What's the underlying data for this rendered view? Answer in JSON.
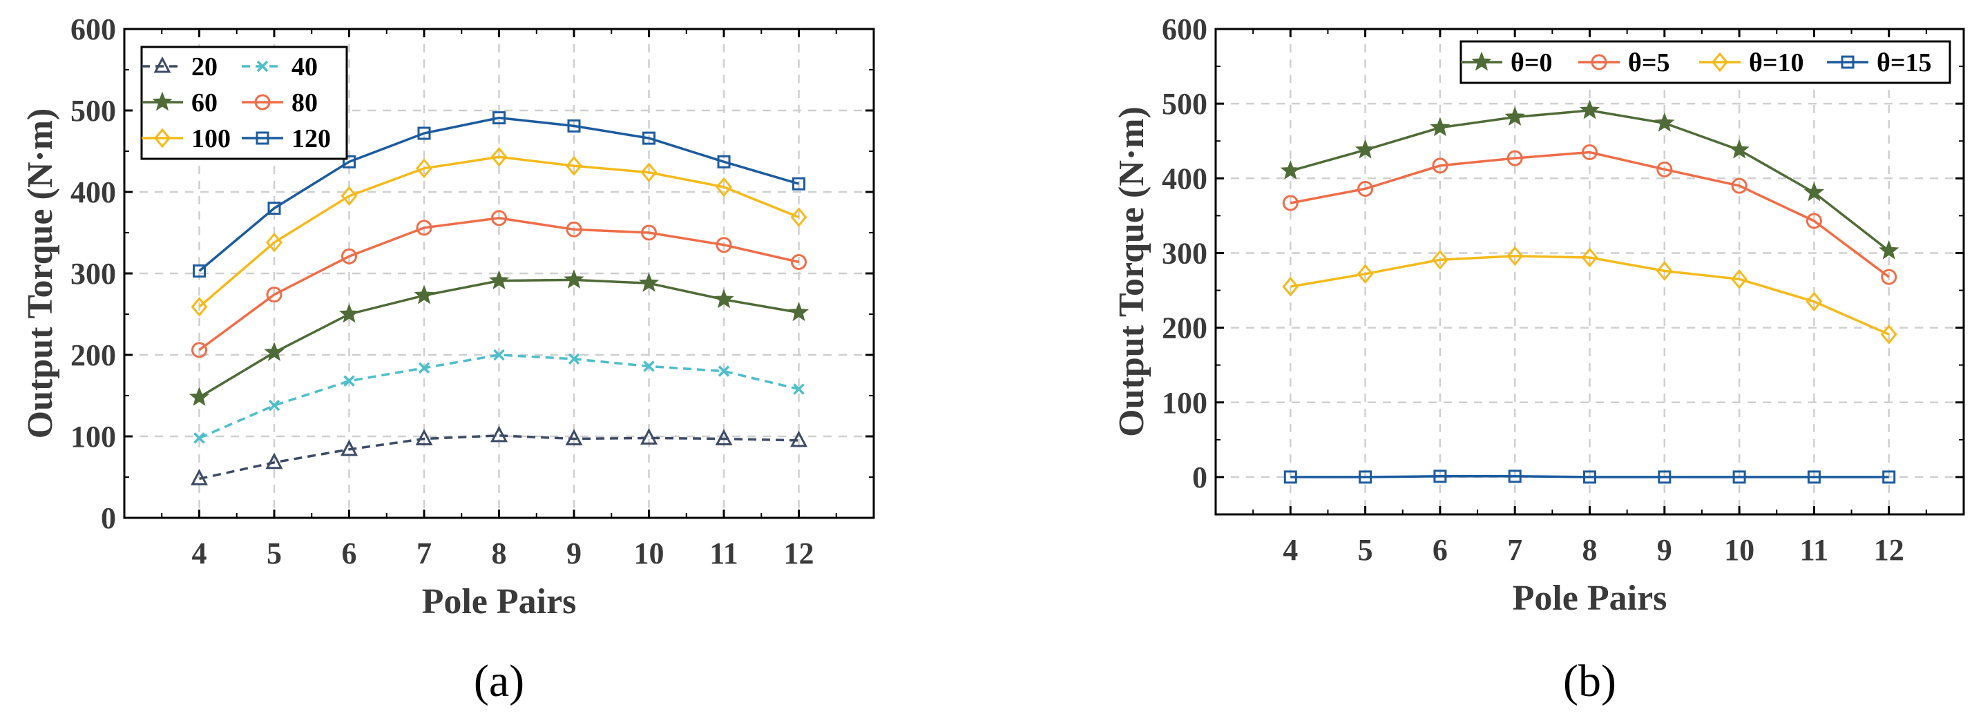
{
  "chart_data": [
    {
      "type": "line",
      "panel_label": "(a)",
      "xlabel": "Pole Pairs",
      "ylabel": "Output Torque (N·m)",
      "x": [
        4,
        5,
        6,
        7,
        8,
        9,
        10,
        11,
        12
      ],
      "x_tick_labels": [
        "4",
        "5",
        "6",
        "7",
        "8",
        "9",
        "10",
        "11",
        "12"
      ],
      "xlim": [
        3,
        13
      ],
      "ylim": [
        0,
        600
      ],
      "y_tick_labels": [
        "0",
        "100",
        "200",
        "300",
        "400",
        "500",
        "600"
      ],
      "grid": true,
      "legend_position": "top-left",
      "legend_columns": 2,
      "series": [
        {
          "name": "20",
          "color": "#3d4b66",
          "marker": "triangle",
          "line_style": "dashed",
          "values": [
            48,
            68,
            84,
            97,
            101,
            97,
            98,
            97,
            95
          ]
        },
        {
          "name": "40",
          "color": "#4dbeca",
          "marker": "x",
          "line_style": "dashed",
          "values": [
            98,
            138,
            168,
            184,
            200,
            195,
            186,
            180,
            158
          ]
        },
        {
          "name": "60",
          "color": "#4f6b37",
          "marker": "star",
          "line_style": "solid",
          "values": [
            148,
            203,
            250,
            273,
            291,
            292,
            288,
            268,
            252
          ]
        },
        {
          "name": "80",
          "color": "#ee6d48",
          "marker": "circle",
          "line_style": "solid",
          "values": [
            206,
            274,
            321,
            356,
            368,
            354,
            350,
            335,
            314
          ]
        },
        {
          "name": "100",
          "color": "#f4ba1b",
          "marker": "diamond",
          "line_style": "solid",
          "values": [
            259,
            338,
            395,
            429,
            443,
            432,
            424,
            406,
            369
          ]
        },
        {
          "name": "120",
          "color": "#1c5b9e",
          "marker": "square",
          "line_style": "solid",
          "values": [
            303,
            380,
            437,
            472,
            491,
            481,
            466,
            437,
            410
          ]
        }
      ]
    },
    {
      "type": "line",
      "panel_label": "(b)",
      "xlabel": "Pole Pairs",
      "ylabel": "Output Torque (N·m)",
      "x": [
        4,
        5,
        6,
        7,
        8,
        9,
        10,
        11,
        12
      ],
      "x_tick_labels": [
        "4",
        "5",
        "6",
        "7",
        "8",
        "9",
        "10",
        "11",
        "12"
      ],
      "xlim": [
        3,
        13
      ],
      "ylim": [
        -50,
        600
      ],
      "y_tick_labels": [
        "0",
        "100",
        "200",
        "300",
        "400",
        "500",
        "600"
      ],
      "grid": true,
      "legend_position": "top-right",
      "legend_columns": 4,
      "series": [
        {
          "name": "θ=0",
          "color": "#4f6b37",
          "marker": "star",
          "line_style": "solid",
          "values": [
            410,
            438,
            468,
            482,
            491,
            474,
            438,
            381,
            303
          ]
        },
        {
          "name": "θ=5",
          "color": "#ee6d48",
          "marker": "circle",
          "line_style": "solid",
          "values": [
            367,
            386,
            417,
            427,
            435,
            412,
            390,
            343,
            268
          ]
        },
        {
          "name": "θ=10",
          "color": "#f4ba1b",
          "marker": "diamond",
          "line_style": "solid",
          "values": [
            255,
            272,
            291,
            296,
            294,
            276,
            265,
            235,
            191
          ]
        },
        {
          "name": "θ=15",
          "color": "#1c5b9e",
          "marker": "square",
          "line_style": "solid",
          "values": [
            0,
            0,
            1,
            1,
            0,
            0,
            0,
            0,
            0
          ]
        }
      ]
    }
  ]
}
